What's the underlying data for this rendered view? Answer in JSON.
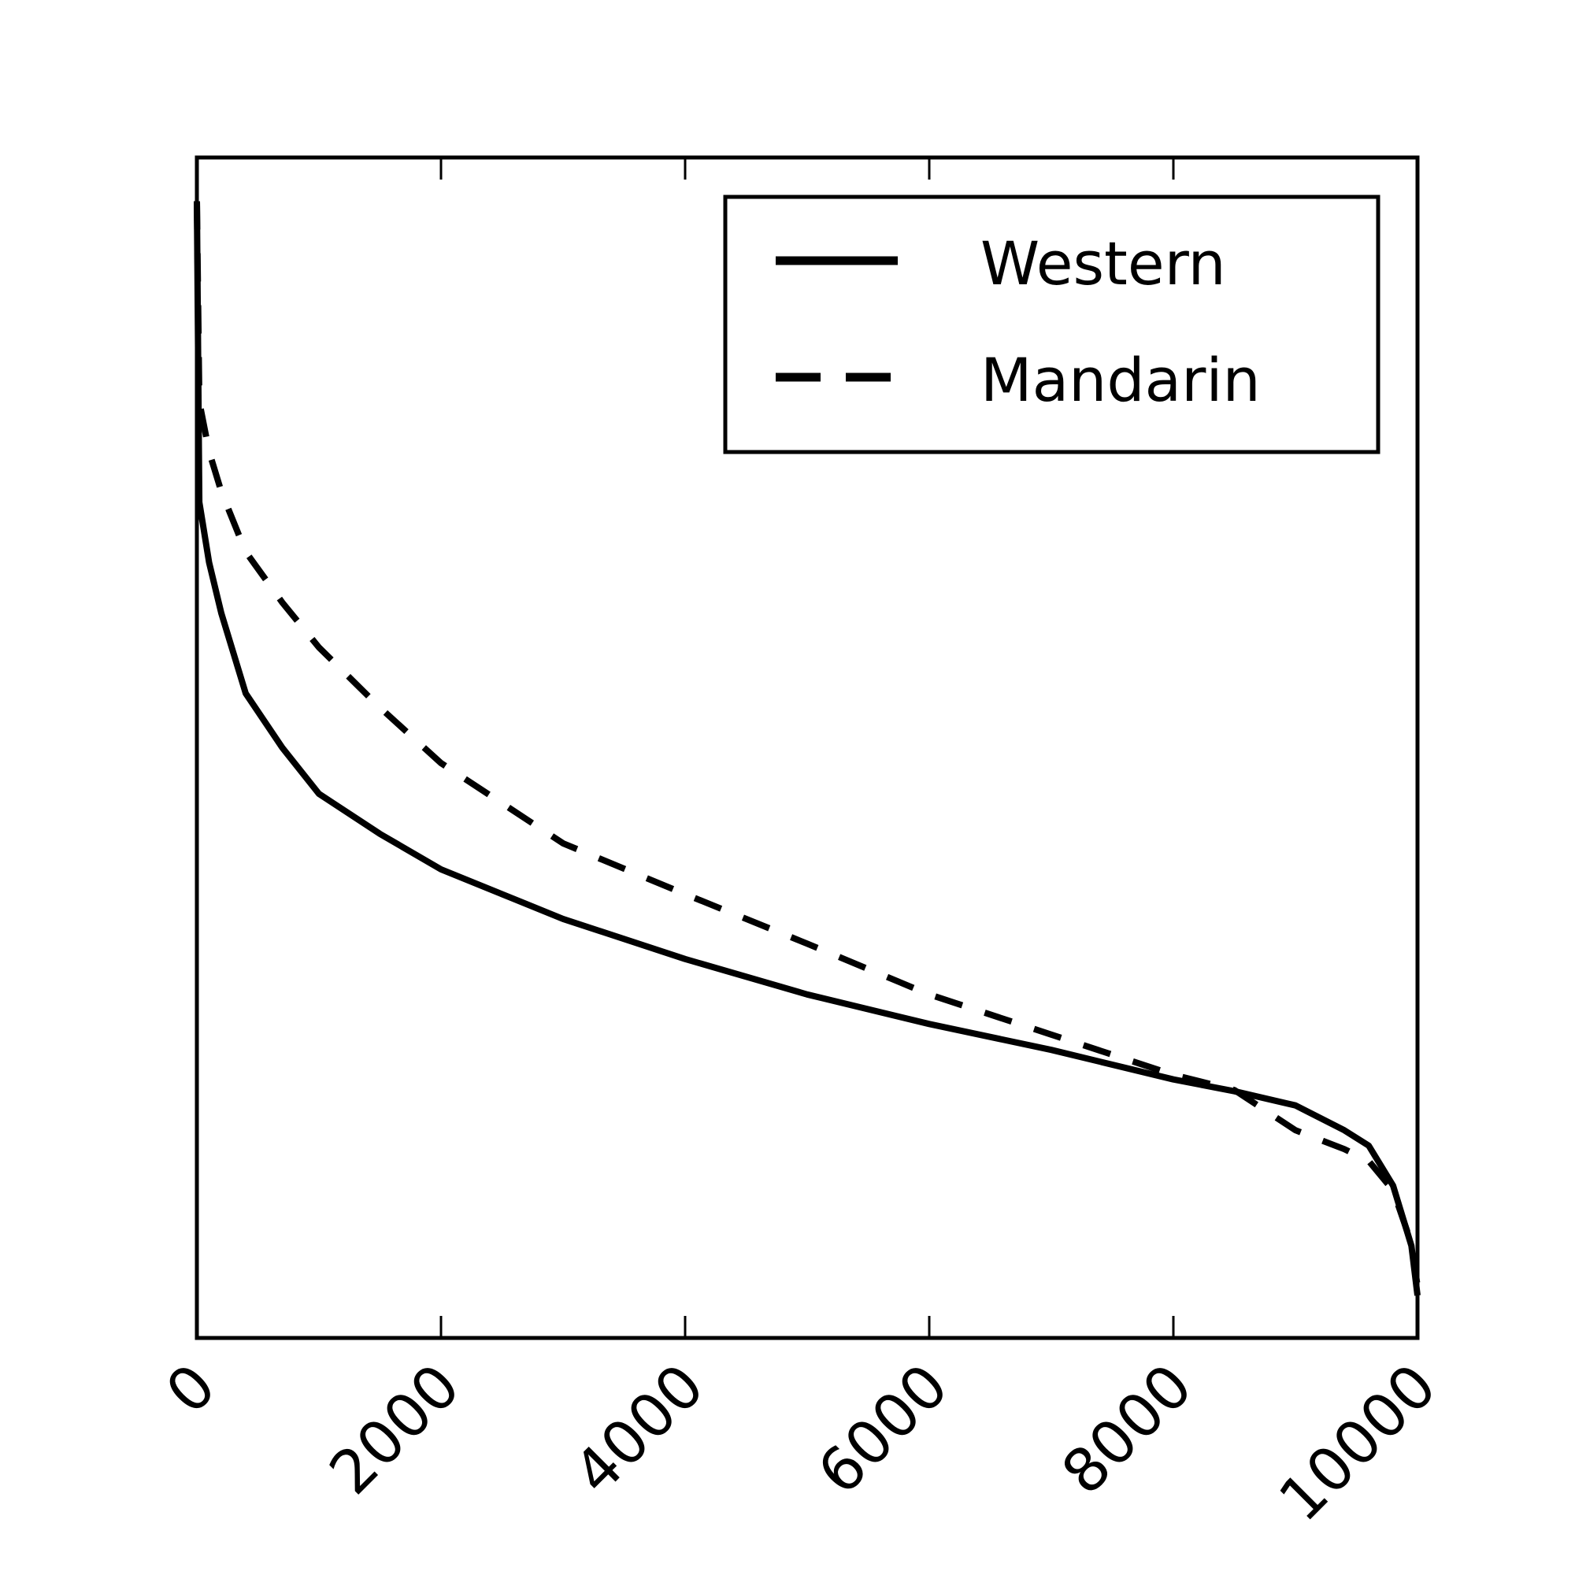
{
  "chart_data": {
    "type": "line",
    "x": [
      0,
      20,
      100,
      200,
      400,
      700,
      1000,
      1500,
      2000,
      3000,
      4000,
      5000,
      6000,
      7000,
      8000,
      8500,
      9000,
      9400,
      9600,
      9800,
      9950,
      10000
    ],
    "series": [
      {
        "name": "Western",
        "color": "#000000",
        "dash": "solid",
        "values": [
          0.963,
          0.708,
          0.657,
          0.614,
          0.546,
          0.5,
          0.461,
          0.427,
          0.397,
          0.355,
          0.321,
          0.291,
          0.266,
          0.244,
          0.219,
          0.209,
          0.197,
          0.176,
          0.163,
          0.129,
          0.078,
          0.036
        ]
      },
      {
        "name": "Mandarin",
        "color": "#000000",
        "dash": "dashed",
        "values": [
          0.963,
          0.793,
          0.751,
          0.717,
          0.666,
          0.623,
          0.585,
          0.534,
          0.487,
          0.419,
          0.376,
          0.334,
          0.291,
          0.257,
          0.223,
          0.21,
          0.176,
          0.16,
          0.15,
          0.125,
          0.08,
          0.044
        ]
      }
    ],
    "xlim": [
      0,
      10000
    ],
    "xticks": [
      0,
      2000,
      4000,
      6000,
      8000,
      10000
    ],
    "ylim": [
      0,
      1
    ],
    "legend": "upper right"
  }
}
